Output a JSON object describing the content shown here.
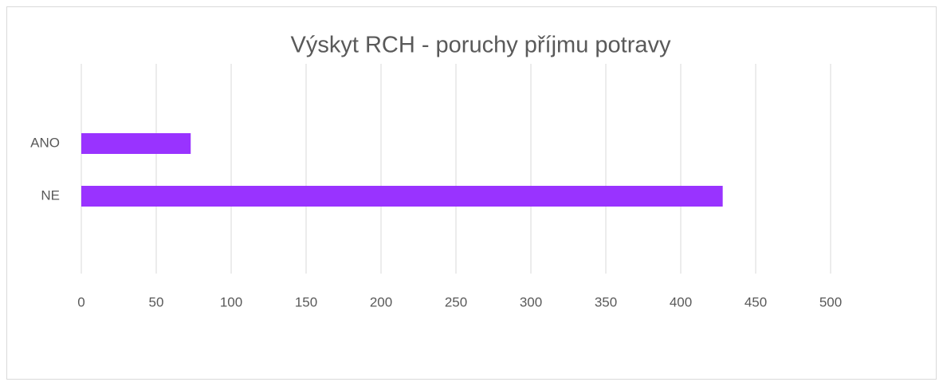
{
  "chart_data": {
    "type": "hbar",
    "title": "Výskyt RCH - poruchy příjmu potravy",
    "categories": [
      "ANO",
      "NE"
    ],
    "values": [
      73,
      428
    ],
    "color": "#9933ff",
    "xlim": [
      0,
      500
    ],
    "xticks": [
      0,
      50,
      100,
      150,
      200,
      250,
      300,
      350,
      400,
      450,
      500
    ],
    "grid": true
  }
}
